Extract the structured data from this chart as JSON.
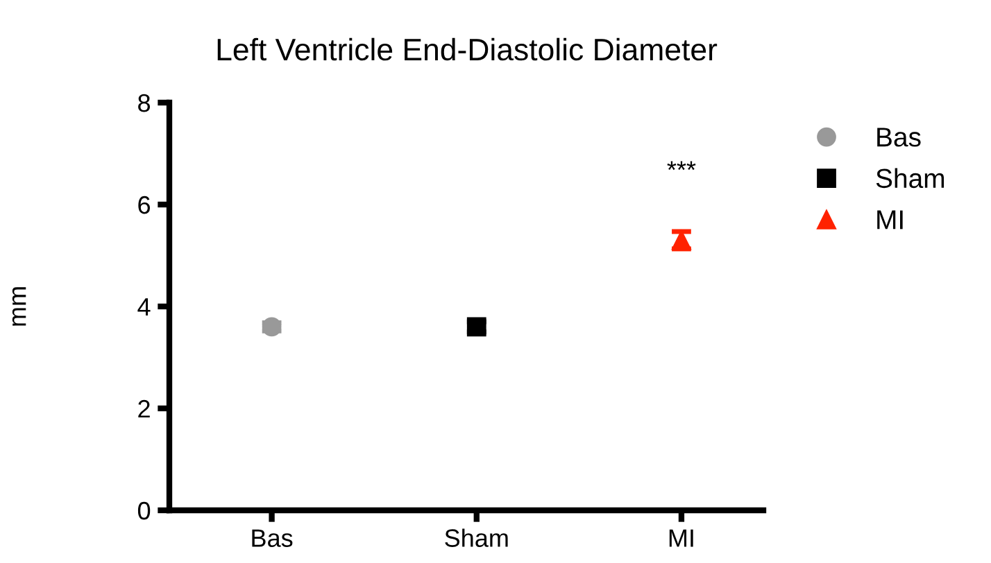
{
  "chart_data": {
    "type": "scatter",
    "title": "Left Ventricle End-Diastolic Diameter",
    "ylabel": "mm",
    "categories": [
      "Bas",
      "Sham",
      "MI"
    ],
    "series": [
      {
        "name": "Bas",
        "color": "#999999",
        "marker": "circle",
        "values": [
          3.6,
          null,
          null
        ],
        "errors": [
          0.08,
          null,
          null
        ]
      },
      {
        "name": "Sham",
        "color": "#000000",
        "marker": "square",
        "values": [
          null,
          3.6,
          null
        ],
        "errors": [
          null,
          0.1,
          null
        ]
      },
      {
        "name": "MI",
        "color": "#ff2200",
        "marker": "triangle",
        "values": [
          null,
          null,
          5.3
        ],
        "errors": [
          null,
          null,
          0.17
        ]
      }
    ],
    "ylim": [
      0,
      8
    ],
    "yticks": [
      0,
      2,
      4,
      6,
      8
    ],
    "grid": false,
    "legend": "right",
    "annotations": [
      "***"
    ]
  }
}
